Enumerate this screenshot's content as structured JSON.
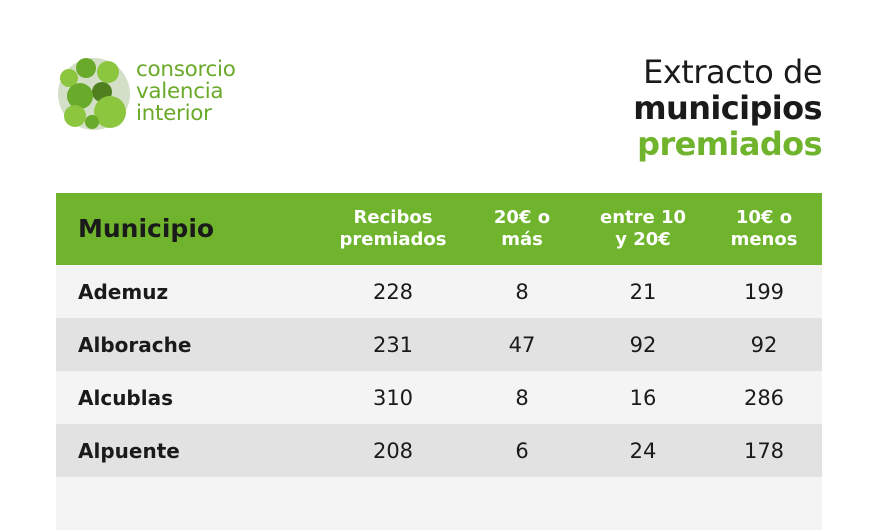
{
  "logo": {
    "lines": [
      "consorcio",
      "valencia",
      "interior"
    ],
    "colors": {
      "light": "#8cc63f",
      "mid": "#6aaa2a",
      "dark": "#4f7f1e"
    }
  },
  "heading": {
    "line1": "Extracto de",
    "line2": "municipios",
    "line3": "premiados"
  },
  "table": {
    "headers": {
      "municipio": "Municipio",
      "recibos": "Recibos\npremiados",
      "mas20": "20€ o\nmás",
      "entre": "entre 10\ny 20€",
      "menos10": "10€ o\nmenos"
    },
    "rows": [
      {
        "municipio": "Ademuz",
        "recibos": "228",
        "mas20": "8",
        "entre": "21",
        "menos10": "199"
      },
      {
        "municipio": "Alborache",
        "recibos": "231",
        "mas20": "47",
        "entre": "92",
        "menos10": "92"
      },
      {
        "municipio": "Alcublas",
        "recibos": "310",
        "mas20": "8",
        "entre": "16",
        "menos10": "286"
      },
      {
        "municipio": "Alpuente",
        "recibos": "208",
        "mas20": "6",
        "entre": "24",
        "menos10": "178"
      }
    ]
  },
  "colors": {
    "accent": "#6fb42c",
    "row_light": "#f4f4f4",
    "row_dark": "#e2e2e2",
    "text": "#1a1a1a"
  }
}
